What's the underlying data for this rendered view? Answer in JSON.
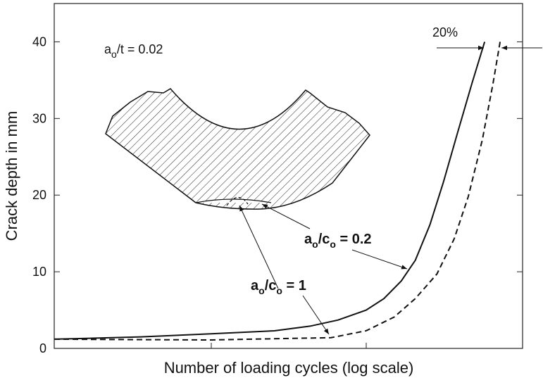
{
  "chart_data": {
    "type": "line",
    "x_label": "Number of loading cycles (log scale)",
    "y_label": "Crack depth in mm",
    "xlim": [
      0,
      100
    ],
    "ylim": [
      0,
      45
    ],
    "yticks": [
      0,
      10,
      20,
      30,
      40
    ],
    "series": [
      {
        "color": "#111111",
        "dash": false,
        "x": [
          0,
          18.5,
          33.5,
          47,
          54.6,
          60.6,
          66.6,
          70.4,
          74.1,
          77.1,
          80.2,
          83.1,
          86.1,
          89.2,
          91.9
        ],
        "values": [
          1.2,
          1.5,
          1.9,
          2.3,
          2.9,
          3.7,
          5.0,
          6.5,
          8.8,
          11.5,
          16.1,
          21.7,
          28.1,
          34.6,
          40
        ]
      },
      {
        "color": "#111111",
        "dash": true,
        "x": [
          0,
          33.5,
          59.1,
          66.6,
          72.6,
          77.1,
          81.7,
          85.4,
          88.4,
          91.4,
          93.7,
          95.2
        ],
        "values": [
          1.2,
          1.1,
          1.4,
          2.3,
          4.1,
          6.5,
          9.7,
          14.3,
          19.8,
          27.2,
          34.6,
          40
        ]
      }
    ],
    "annotations": [
      {
        "parts": [
          "a",
          "o",
          "/t = 0.02"
        ]
      },
      {
        "parts": [
          "20%"
        ]
      },
      {
        "parts": [
          "a",
          "o",
          "/c",
          "o",
          " = 0.2"
        ]
      },
      {
        "parts": [
          "a",
          "o",
          "/c",
          "o",
          " = 1"
        ]
      }
    ]
  }
}
